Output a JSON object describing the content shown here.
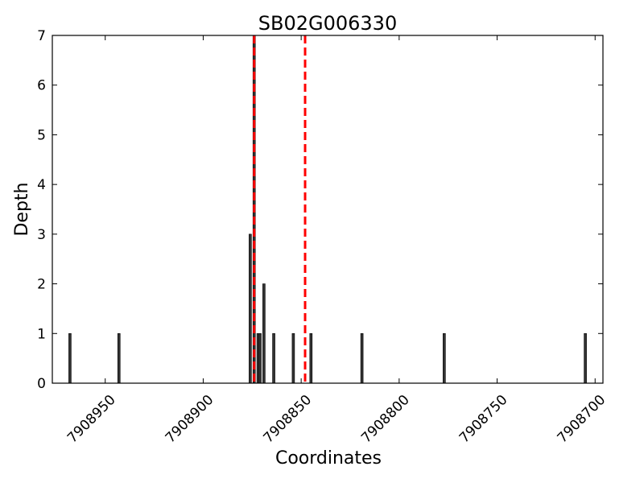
{
  "chart_data": {
    "type": "bar",
    "title": "SB02G006330",
    "xlabel": "Coordinates",
    "ylabel": "Depth",
    "xlim": [
      7908977,
      7908696
    ],
    "x_reversed": true,
    "ylim": [
      0,
      7
    ],
    "x_ticks": [
      7908950,
      7908900,
      7908850,
      7908800,
      7908750,
      7908700
    ],
    "x_tick_labels": [
      "7908950",
      "7908900",
      "7908850",
      "7908800",
      "7908750",
      "7908700"
    ],
    "y_ticks": [
      0,
      1,
      2,
      3,
      4,
      5,
      6,
      7
    ],
    "y_tick_labels": [
      "0",
      "1",
      "2",
      "3",
      "4",
      "5",
      "6",
      "7"
    ],
    "x_tick_rotation": 45,
    "grid": false,
    "bar_color": "#000000",
    "bar_fill": "#333333",
    "points": [
      {
        "x": 7908968,
        "y": 1
      },
      {
        "x": 7908943,
        "y": 1
      },
      {
        "x": 7908876,
        "y": 3
      },
      {
        "x": 7908874,
        "y": 7
      },
      {
        "x": 7908872,
        "y": 1
      },
      {
        "x": 7908871,
        "y": 1
      },
      {
        "x": 7908869,
        "y": 2
      },
      {
        "x": 7908864,
        "y": 1
      },
      {
        "x": 7908854,
        "y": 1
      },
      {
        "x": 7908845,
        "y": 1
      },
      {
        "x": 7908819,
        "y": 1
      },
      {
        "x": 7908777,
        "y": 1
      },
      {
        "x": 7908705,
        "y": 1
      }
    ],
    "reference_lines": [
      {
        "x": 7908874,
        "color": "#ff0000",
        "style": "dashed"
      },
      {
        "x": 7908848,
        "color": "#ff0000",
        "style": "dashed"
      }
    ]
  }
}
